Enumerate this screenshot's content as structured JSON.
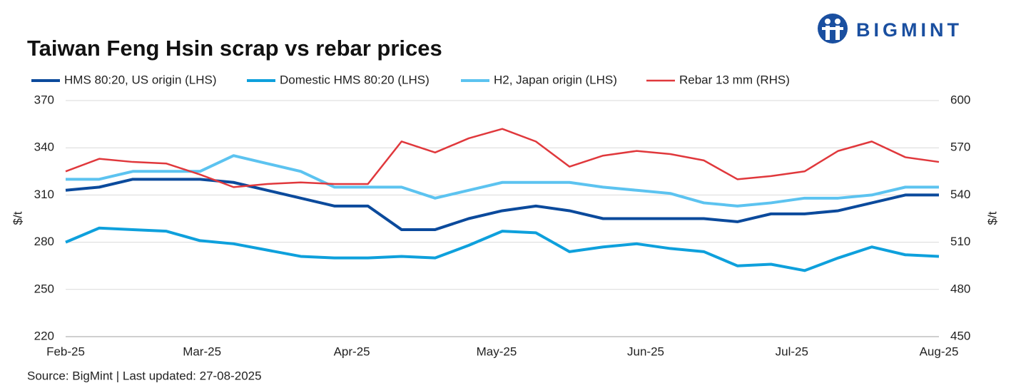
{
  "chart_data": {
    "type": "line",
    "title": "Taiwan Feng Hsin scrap vs rebar prices",
    "brand": "BIGMINT",
    "source": "Source: BigMint |  Last updated: 27-08-2025",
    "y_label": "$/t",
    "y2_label": "$/t",
    "x": [
      0,
      1,
      2,
      3,
      4,
      5,
      6,
      7,
      8,
      9,
      10,
      11,
      12,
      13,
      14,
      15,
      16,
      17,
      18,
      19,
      20,
      21,
      22,
      23,
      24,
      25,
      26
    ],
    "xlim": [
      0,
      26
    ],
    "xticks": [
      {
        "value": 0,
        "label": "Feb-25"
      },
      {
        "value": 4.06,
        "label": "Mar-25"
      },
      {
        "value": 8.52,
        "label": "Apr-25"
      },
      {
        "value": 12.83,
        "label": "May-25"
      },
      {
        "value": 17.27,
        "label": "Jun-25"
      },
      {
        "value": 21.62,
        "label": "Jul-25"
      },
      {
        "value": 26,
        "label": "Aug-25"
      }
    ],
    "ylim": [
      220,
      370
    ],
    "yticks": [
      220,
      250,
      280,
      310,
      340,
      370
    ],
    "y2lim": [
      450,
      600
    ],
    "y2ticks": [
      450,
      480,
      510,
      540,
      570,
      600
    ],
    "grid": true,
    "series": [
      {
        "name": "HMS 80:20, US origin (LHS)",
        "color": "#0b4a9c",
        "width": 4,
        "values": [
          313,
          315,
          320,
          320,
          320,
          318,
          313,
          308,
          303,
          303,
          288,
          288,
          295,
          300,
          303,
          300,
          295,
          295,
          295,
          295,
          293,
          298,
          298,
          300,
          305,
          310,
          310
        ]
      },
      {
        "name": "Domestic HMS 80:20 (LHS)",
        "color": "#0ea0dc",
        "width": 4,
        "values": [
          280,
          289,
          288,
          287,
          281,
          279,
          275,
          271,
          270,
          270,
          271,
          270,
          278,
          287,
          286,
          274,
          277,
          279,
          276,
          274,
          265,
          266,
          262,
          270,
          277,
          272,
          271
        ]
      },
      {
        "name": "H2, Japan origin (LHS)",
        "color": "#5cc3f0",
        "width": 4,
        "values": [
          320,
          320,
          325,
          325,
          325,
          335,
          330,
          325,
          315,
          315,
          315,
          308,
          313,
          318,
          318,
          318,
          315,
          313,
          311,
          305,
          303,
          305,
          308,
          308,
          310,
          315,
          315
        ]
      },
      {
        "name": "Rebar 13 mm (RHS)",
        "color": "#e0383c",
        "width": 2.5,
        "axis": "y2",
        "values": [
          555,
          563,
          561,
          560,
          553,
          545,
          547,
          548,
          547,
          547,
          574,
          567,
          576,
          582,
          574,
          558,
          565,
          568,
          566,
          562,
          550,
          552,
          555,
          568,
          574,
          564,
          561
        ]
      }
    ]
  }
}
